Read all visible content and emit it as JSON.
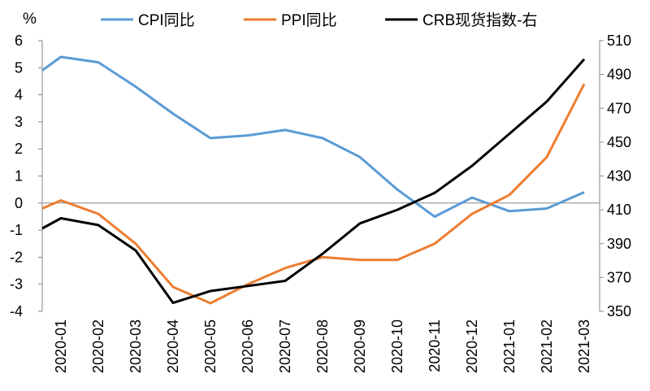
{
  "chart_data": {
    "type": "line",
    "y_unit_label": "%",
    "categories": [
      "2020-01",
      "2020-02",
      "2020-03",
      "2020-04",
      "2020-05",
      "2020-06",
      "2020-07",
      "2020-08",
      "2020-09",
      "2020-10",
      "2020-11",
      "2020-12",
      "2021-01",
      "2021-02",
      "2021-03"
    ],
    "left_axis": {
      "min": -4,
      "max": 6,
      "ticks": [
        6,
        5,
        4,
        3,
        2,
        1,
        0,
        -1,
        -2,
        -3,
        -4
      ]
    },
    "right_axis": {
      "min": 350,
      "max": 510,
      "ticks": [
        510,
        490,
        470,
        450,
        430,
        410,
        390,
        370,
        350
      ]
    },
    "grid": false,
    "legend_position": "top",
    "series": [
      {
        "name": "CPI同比",
        "axis": "left",
        "color": "#5b9bd5",
        "leading": 4.9,
        "values": [
          5.4,
          5.2,
          4.3,
          3.3,
          2.4,
          2.5,
          2.7,
          2.4,
          1.7,
          0.5,
          -0.5,
          0.2,
          -0.3,
          -0.2,
          0.4
        ]
      },
      {
        "name": "PPI同比",
        "axis": "left",
        "color": "#ed7d31",
        "leading": -0.2,
        "values": [
          0.1,
          -0.4,
          -1.5,
          -3.1,
          -3.7,
          -3.0,
          -2.4,
          -2.0,
          -2.1,
          -2.1,
          -1.5,
          -0.4,
          0.3,
          1.7,
          4.4
        ]
      },
      {
        "name": "CRB现货指数-右",
        "axis": "right",
        "color": "#000000",
        "leading": 399,
        "values": [
          405,
          401,
          386,
          355,
          362,
          365,
          368,
          384,
          402,
          410,
          420,
          436,
          455,
          474,
          499
        ]
      }
    ]
  }
}
